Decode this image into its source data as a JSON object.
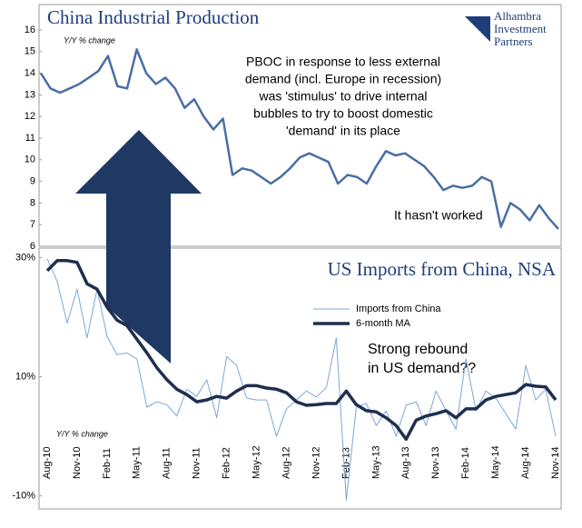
{
  "logo": [
    "Alhambra",
    "Investment",
    "Partners"
  ],
  "chart_data": [
    {
      "type": "line",
      "title": "China Industrial Production",
      "subtitle": "Y/Y % change",
      "annotations": [
        "PBOC in response to less external",
        "demand (incl. Europe in recession)",
        "was 'stimulus' to drive internal",
        "bubbles to try to boost domestic",
        "'demand' in its place",
        "It hasn't worked"
      ],
      "color": "#4a6fa5",
      "values": [
        14.0,
        13.3,
        13.1,
        13.3,
        13.5,
        13.8,
        14.1,
        14.8,
        13.4,
        13.3,
        15.1,
        14.0,
        13.5,
        13.8,
        13.3,
        12.4,
        12.8,
        12.0,
        11.4,
        11.9,
        9.3,
        9.6,
        9.5,
        9.2,
        8.9,
        9.2,
        9.6,
        10.1,
        10.3,
        10.1,
        9.9,
        8.9,
        9.3,
        9.2,
        8.9,
        9.7,
        10.4,
        10.2,
        10.3,
        10.0,
        9.7,
        9.2,
        8.6,
        8.8,
        8.7,
        8.8,
        9.2,
        9.0,
        6.9,
        8.0,
        7.7,
        7.2,
        7.9,
        7.3,
        6.8
      ],
      "ylim": [
        6,
        16
      ],
      "yticks": [
        6,
        7,
        8,
        9,
        10,
        11,
        12,
        13,
        14,
        15,
        16
      ]
    },
    {
      "type": "line",
      "title": "US Imports from China, NSA",
      "subtitle": "Y/Y % change",
      "annotations": [
        "Strong rebound",
        "in US demand??"
      ],
      "categories": [
        "Aug-10",
        null,
        null,
        "Nov-10",
        null,
        null,
        "Feb-11",
        null,
        null,
        "May-11",
        null,
        null,
        "Aug-11",
        null,
        null,
        "Nov-11",
        null,
        null,
        "Feb-12",
        null,
        null,
        "May-12",
        null,
        null,
        "Aug-12",
        null,
        null,
        "Nov-12",
        null,
        null,
        "Feb-13",
        null,
        null,
        "May-13",
        null,
        null,
        "Aug-13",
        null,
        null,
        "Nov-13",
        null,
        null,
        "Feb-14",
        null,
        null,
        "May-14",
        null,
        null,
        "Aug-14",
        null,
        null,
        "Nov-14"
      ],
      "series": [
        {
          "name": "Imports from China",
          "color": "#7ba7d7",
          "values": [
            29.8,
            26,
            19,
            24.7,
            16.5,
            24.7,
            16.8,
            13.7,
            14,
            13,
            4.9,
            5.8,
            5.3,
            3.4,
            7.9,
            6.7,
            9.5,
            3.1,
            13.4,
            11.9,
            6.4,
            6.1,
            6.1,
            0,
            4.6,
            6.1,
            7.6,
            6.6,
            8.2,
            16.5,
            -10.7,
            4.9,
            5.5,
            1.8,
            4.3,
            0,
            5.2,
            5.8,
            1.8,
            7.6,
            4.3,
            1.2,
            13,
            4.3,
            7.6,
            6.4,
            3.8,
            1.2,
            11.9,
            6.1,
            7.9,
            0
          ]
        },
        {
          "name": "6-month MA",
          "color": "#1f2f4f",
          "values": [
            27.8,
            29.5,
            29.5,
            29.2,
            25.6,
            24.7,
            21.7,
            19.5,
            18.6,
            16.3,
            14.0,
            11.5,
            9.5,
            7.9,
            7.0,
            5.8,
            6.1,
            6.7,
            6.4,
            7.6,
            8.5,
            8.5,
            8.1,
            7.9,
            7.3,
            5.8,
            5.2,
            5.3,
            5.5,
            5.5,
            7.6,
            5.3,
            4.3,
            4.1,
            3.1,
            1.8,
            -0.5,
            2.7,
            3.4,
            3.8,
            4.3,
            3.1,
            4.6,
            4.6,
            6.1,
            6.7,
            7.0,
            7.3,
            8.7,
            8.4,
            8.3,
            6.1
          ]
        }
      ],
      "ylim": [
        -12.2,
        31.6
      ],
      "yticks": [
        {
          "value": 30,
          "label": "30%"
        },
        {
          "value": 10,
          "label": "10%"
        },
        {
          "value": -10,
          "label": "-10%"
        }
      ]
    }
  ]
}
